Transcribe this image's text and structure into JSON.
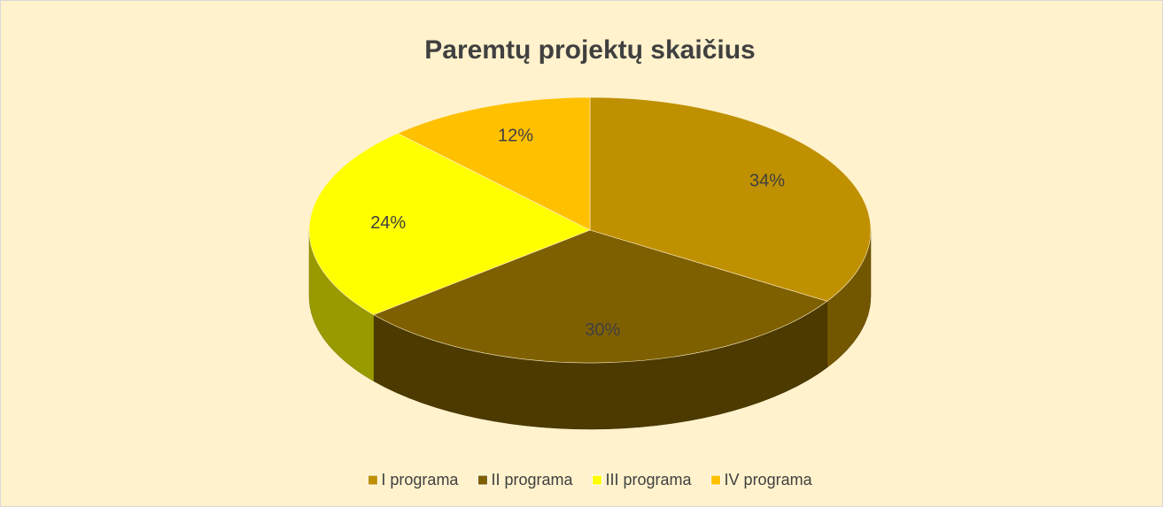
{
  "chart_data": {
    "type": "pie",
    "title": "Paremtų projektų skaičius",
    "categories": [
      "I programa",
      "II programa",
      "III programa",
      "IV programa"
    ],
    "values": [
      34,
      30,
      24,
      12
    ],
    "value_labels": [
      "34%",
      "30%",
      "24%",
      "12%"
    ],
    "colors": [
      "#bf9000",
      "#7f6000",
      "#ffff00",
      "#ffc000"
    ],
    "legend": "bottom"
  }
}
